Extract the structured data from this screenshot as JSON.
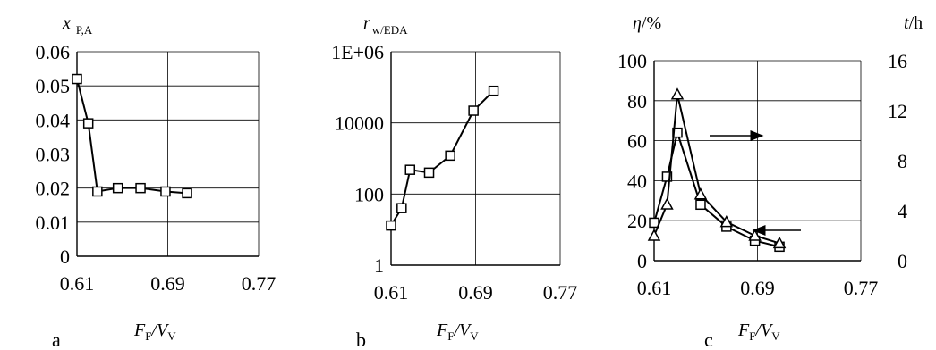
{
  "chart_data": [
    {
      "type": "line",
      "panel_label": "a",
      "ylabel": {
        "main": "x",
        "sub": "P,A"
      },
      "xlabel": {
        "F": "F",
        "Fsub": "F",
        "V": "V",
        "Vsub": "V"
      },
      "x_ticks": [
        "0.61",
        "0.69",
        "0.77"
      ],
      "xlim": [
        0.61,
        0.77
      ],
      "y_ticks": [
        "0.06",
        "0.05",
        "0.04",
        "0.03",
        "0.02",
        "0.01",
        "0"
      ],
      "ylim": [
        0,
        0.06
      ],
      "series": [
        {
          "marker": "square",
          "x": [
            0.61,
            0.62,
            0.628,
            0.646,
            0.666,
            0.688,
            0.707
          ],
          "y": [
            0.052,
            0.039,
            0.019,
            0.02,
            0.02,
            0.019,
            0.0185
          ]
        }
      ]
    },
    {
      "type": "line",
      "panel_label": "b",
      "ylabel": {
        "main": "r",
        "sub": "w/EDA"
      },
      "xlabel": {
        "F": "F",
        "Fsub": "F",
        "V": "V",
        "Vsub": "V"
      },
      "x_ticks": [
        "0.61",
        "0.69",
        "0.77"
      ],
      "xlim": [
        0.61,
        0.77
      ],
      "y_ticks": [
        "1E+06",
        "10000",
        "100",
        "1"
      ],
      "yscale": "log",
      "ylim": [
        1,
        1000000
      ],
      "series": [
        {
          "marker": "square",
          "x": [
            0.61,
            0.62,
            0.628,
            0.646,
            0.666,
            0.688,
            0.707
          ],
          "y": [
            13,
            40,
            480,
            400,
            1200,
            22000,
            80000
          ]
        }
      ]
    },
    {
      "type": "line",
      "panel_label": "c",
      "ylabel": {
        "main": "η",
        "unit": "/%"
      },
      "y2label": {
        "main": "t",
        "unit": "/h"
      },
      "xlabel": {
        "F": "F",
        "Fsub": "F",
        "V": "V",
        "Vsub": "V"
      },
      "x_ticks": [
        "0.61",
        "0.69",
        "0.77"
      ],
      "xlim": [
        0.61,
        0.77
      ],
      "y_ticks": [
        "100",
        "80",
        "60",
        "40",
        "20",
        "0"
      ],
      "ylim": [
        0,
        100
      ],
      "y2_ticks": [
        "16",
        "12",
        "8",
        "4",
        "0"
      ],
      "y2lim": [
        0,
        16
      ],
      "series": [
        {
          "marker": "square",
          "axis": "left",
          "x": [
            0.61,
            0.62,
            0.628,
            0.646,
            0.666,
            0.688,
            0.707
          ],
          "y": [
            19,
            42,
            64,
            28,
            17,
            10,
            7
          ]
        },
        {
          "marker": "triangle",
          "axis": "right",
          "x": [
            0.61,
            0.62,
            0.628,
            0.646,
            0.666,
            0.688,
            0.707
          ],
          "y": [
            2,
            4.5,
            13.3,
            5.3,
            3.1,
            2,
            1.4
          ]
        }
      ]
    }
  ]
}
